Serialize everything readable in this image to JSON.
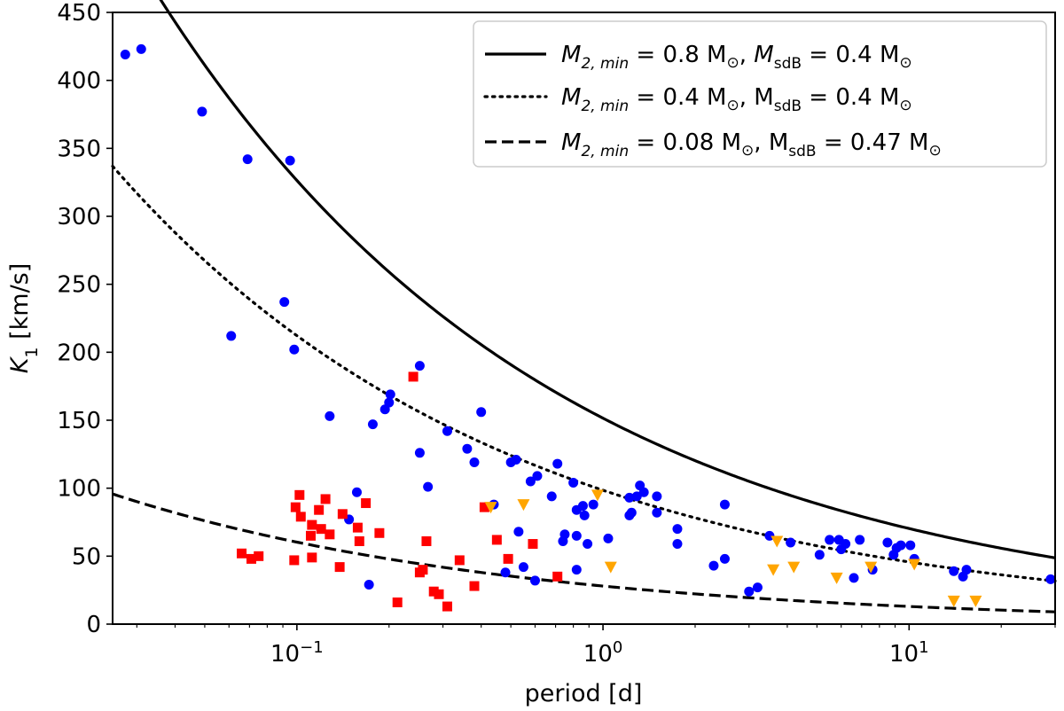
{
  "chart_data": {
    "type": "scatter",
    "xscale": "log",
    "xlabel": "period [d]",
    "ylabel": "K",
    "ylabel_sub": "1",
    "ylabel_unit": " [km/s]",
    "xlim": [
      0.025,
      30
    ],
    "ylim": [
      0,
      450
    ],
    "yticks": [
      0,
      50,
      100,
      150,
      200,
      250,
      300,
      350,
      400,
      450
    ],
    "xticks": [
      {
        "value": 0.1,
        "base": "10",
        "exp": "−1"
      },
      {
        "value": 1,
        "base": "10",
        "exp": "0"
      },
      {
        "value": 10,
        "base": "10",
        "exp": "1"
      }
    ],
    "legend": [
      {
        "style": "solid",
        "m2": "0.8",
        "msdb": "0.4",
        "sdb_italic": true
      },
      {
        "style": "dotted",
        "m2": "0.4",
        "msdb": "0.4",
        "sdb_italic": false
      },
      {
        "style": "dashed",
        "m2": "0.08",
        "msdb": "0.47",
        "sdb_italic": false
      }
    ],
    "legend_text": {
      "m2_symbol": "M",
      "m2_sub": "2, min",
      "msdb_symbol": "M",
      "msdb_sub": "sdB",
      "unit": "M",
      "sun": "⊙",
      "eq": " = "
    },
    "curves": [
      {
        "name": "M2min=0.8, MsdB=0.4",
        "style": "solid",
        "k_at_1d": 151.5
      },
      {
        "name": "M2min=0.4, MsdB=0.4",
        "style": "dotted",
        "k_at_1d": 98.5
      },
      {
        "name": "M2min=0.08, MsdB=0.47",
        "style": "dashed",
        "k_at_1d": 28.0
      }
    ],
    "series": [
      {
        "name": "blue circles",
        "marker": "circle",
        "color": "#0000ff",
        "points": [
          [
            0.0275,
            419
          ],
          [
            0.031,
            423
          ],
          [
            0.049,
            377
          ],
          [
            0.061,
            212
          ],
          [
            0.069,
            342
          ],
          [
            0.091,
            237
          ],
          [
            0.095,
            341
          ],
          [
            0.098,
            202
          ],
          [
            0.128,
            153
          ],
          [
            0.148,
            77
          ],
          [
            0.157,
            97
          ],
          [
            0.172,
            29
          ],
          [
            0.177,
            147
          ],
          [
            0.194,
            158
          ],
          [
            0.2,
            163
          ],
          [
            0.202,
            169
          ],
          [
            0.252,
            126
          ],
          [
            0.252,
            190
          ],
          [
            0.268,
            101
          ],
          [
            0.31,
            142
          ],
          [
            0.36,
            129
          ],
          [
            0.38,
            119
          ],
          [
            0.4,
            156
          ],
          [
            0.44,
            88
          ],
          [
            0.48,
            38
          ],
          [
            0.5,
            119
          ],
          [
            0.52,
            121
          ],
          [
            0.53,
            68
          ],
          [
            0.55,
            42
          ],
          [
            0.58,
            105
          ],
          [
            0.6,
            32
          ],
          [
            0.61,
            109
          ],
          [
            0.68,
            94
          ],
          [
            0.71,
            118
          ],
          [
            0.74,
            61
          ],
          [
            0.75,
            66
          ],
          [
            0.8,
            104
          ],
          [
            0.82,
            65
          ],
          [
            0.82,
            40
          ],
          [
            0.82,
            84
          ],
          [
            0.86,
            87
          ],
          [
            0.87,
            80
          ],
          [
            0.89,
            59
          ],
          [
            0.93,
            88
          ],
          [
            1.04,
            63
          ],
          [
            1.22,
            93
          ],
          [
            1.22,
            80
          ],
          [
            1.24,
            82
          ],
          [
            1.29,
            94
          ],
          [
            1.32,
            102
          ],
          [
            1.36,
            97
          ],
          [
            1.5,
            94
          ],
          [
            1.5,
            82
          ],
          [
            1.75,
            59
          ],
          [
            1.75,
            70
          ],
          [
            2.3,
            43
          ],
          [
            2.5,
            88
          ],
          [
            2.5,
            48
          ],
          [
            3.0,
            24
          ],
          [
            3.2,
            27
          ],
          [
            3.5,
            65
          ],
          [
            4.1,
            60
          ],
          [
            5.1,
            51
          ],
          [
            5.5,
            62
          ],
          [
            5.9,
            62
          ],
          [
            6.0,
            55
          ],
          [
            6.2,
            59
          ],
          [
            6.6,
            34
          ],
          [
            6.9,
            62
          ],
          [
            7.6,
            40
          ],
          [
            8.5,
            60
          ],
          [
            8.9,
            51
          ],
          [
            9.1,
            56
          ],
          [
            9.4,
            58
          ],
          [
            10.1,
            58
          ],
          [
            10.4,
            48
          ],
          [
            14.0,
            39
          ],
          [
            15.0,
            35
          ],
          [
            15.4,
            40
          ],
          [
            29.0,
            33
          ]
        ]
      },
      {
        "name": "red squares",
        "marker": "square",
        "color": "#ff0000",
        "points": [
          [
            0.066,
            52
          ],
          [
            0.071,
            48
          ],
          [
            0.075,
            50
          ],
          [
            0.098,
            47
          ],
          [
            0.099,
            86
          ],
          [
            0.102,
            95
          ],
          [
            0.103,
            79
          ],
          [
            0.111,
            65
          ],
          [
            0.112,
            49
          ],
          [
            0.112,
            73
          ],
          [
            0.118,
            84
          ],
          [
            0.12,
            70
          ],
          [
            0.124,
            92
          ],
          [
            0.128,
            66
          ],
          [
            0.138,
            42
          ],
          [
            0.141,
            81
          ],
          [
            0.158,
            71
          ],
          [
            0.16,
            61
          ],
          [
            0.168,
            89
          ],
          [
            0.186,
            67
          ],
          [
            0.213,
            16
          ],
          [
            0.24,
            182
          ],
          [
            0.252,
            38
          ],
          [
            0.258,
            40
          ],
          [
            0.265,
            61
          ],
          [
            0.28,
            24
          ],
          [
            0.291,
            22
          ],
          [
            0.31,
            13
          ],
          [
            0.34,
            47
          ],
          [
            0.38,
            28
          ],
          [
            0.41,
            86
          ],
          [
            0.45,
            62
          ],
          [
            0.49,
            48
          ],
          [
            0.59,
            59
          ],
          [
            0.71,
            35
          ]
        ]
      },
      {
        "name": "orange triangles",
        "marker": "triangle-down",
        "color": "#ffa500",
        "points": [
          [
            0.43,
            86
          ],
          [
            0.55,
            88
          ],
          [
            0.96,
            95
          ],
          [
            1.06,
            42
          ],
          [
            3.6,
            40
          ],
          [
            3.7,
            61
          ],
          [
            4.2,
            42
          ],
          [
            5.8,
            34
          ],
          [
            7.5,
            42
          ],
          [
            10.4,
            44
          ],
          [
            14.0,
            17
          ],
          [
            16.5,
            17
          ]
        ]
      }
    ]
  }
}
